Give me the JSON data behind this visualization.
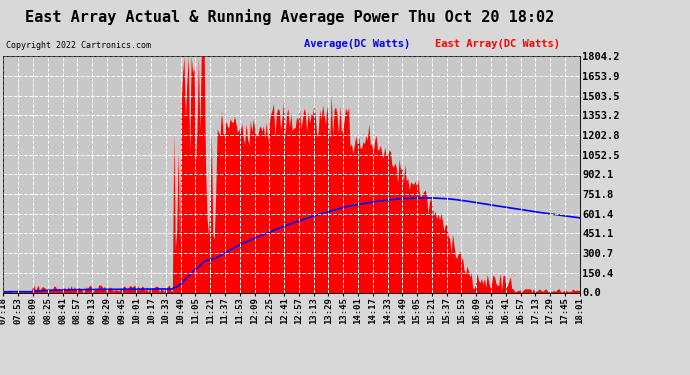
{
  "title": "East Array Actual & Running Average Power Thu Oct 20 18:02",
  "copyright": "Copyright 2022 Cartronics.com",
  "legend_avg": "Average(DC Watts)",
  "legend_east": "East Array(DC Watts)",
  "legend_avg_color": "blue",
  "legend_east_color": "red",
  "ylabel_right_ticks": [
    0.0,
    150.4,
    300.7,
    451.1,
    601.4,
    751.8,
    902.1,
    1052.5,
    1202.8,
    1353.2,
    1503.5,
    1653.9,
    1804.2
  ],
  "ymax": 1804.2,
  "ymin": 0.0,
  "background_color": "#d8d8d8",
  "plot_bg_color": "#c8c8c8",
  "grid_color": "white",
  "bar_color": "red",
  "line_color": "blue",
  "title_fontsize": 11,
  "tick_fontsize": 6.5,
  "x_labels": [
    "07:18",
    "07:53",
    "08:09",
    "08:25",
    "08:41",
    "08:57",
    "09:13",
    "09:29",
    "09:45",
    "10:01",
    "10:17",
    "10:33",
    "10:49",
    "11:05",
    "11:21",
    "11:37",
    "11:53",
    "12:09",
    "12:25",
    "12:41",
    "12:57",
    "13:13",
    "13:29",
    "13:45",
    "14:01",
    "14:17",
    "14:33",
    "14:49",
    "15:05",
    "15:21",
    "15:37",
    "15:53",
    "16:09",
    "16:25",
    "16:41",
    "16:57",
    "17:13",
    "17:29",
    "17:45",
    "18:01"
  ],
  "n_points": 400
}
